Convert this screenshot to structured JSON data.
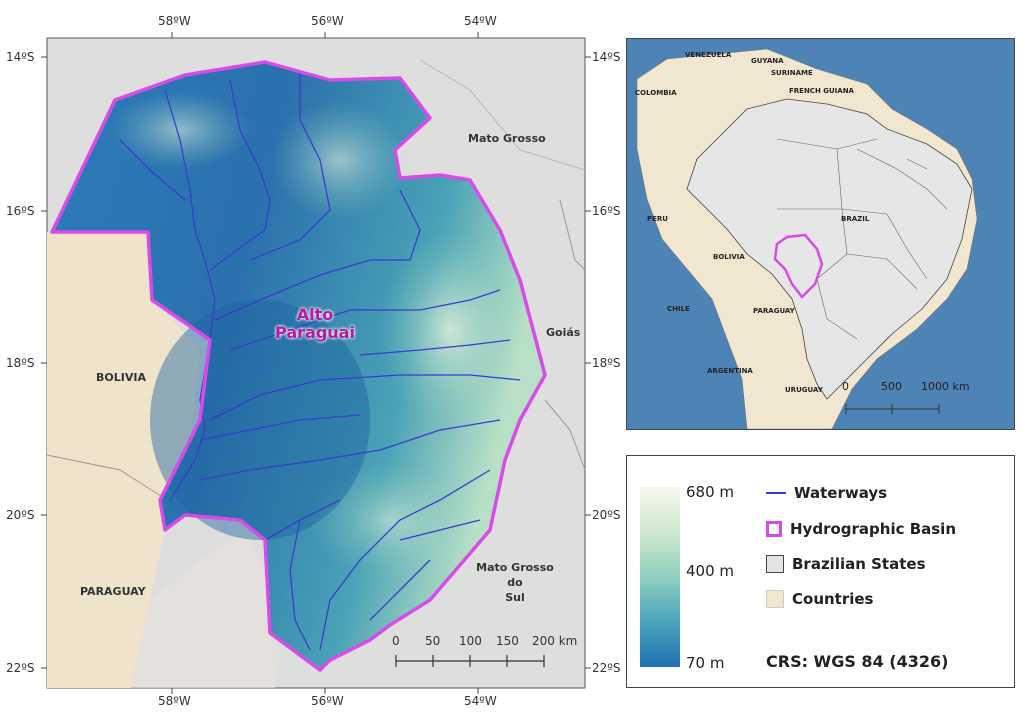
{
  "main_map": {
    "lon_ticks": [
      "58ºW",
      "56ºW",
      "54ºW"
    ],
    "lat_ticks": [
      "14ºS",
      "16ºS",
      "18ºS",
      "20ºS",
      "22ºS"
    ],
    "basin_label": "Alto\nParaguai",
    "regions": {
      "mato_grosso": "Mato Grosso",
      "goias": "Goiás",
      "bolivia": "BOLIVIA",
      "paraguay": "PARAGUAY",
      "mato_grosso_do_sul": "Mato Grosso\ndo\nSul"
    },
    "scale": {
      "labels": [
        "0",
        "50",
        "100",
        "150",
        "200 km"
      ]
    }
  },
  "inset_map": {
    "countries": [
      "VENEZUELA",
      "GUYANA",
      "SURINAME",
      "FRENCH GUIANA",
      "COLOMBIA",
      "PERU",
      "BOLIVIA",
      "BRAZIL",
      "CHILE",
      "PARAGUAY",
      "ARGENTINA",
      "URUGUAY"
    ],
    "scale": {
      "labels": [
        "0",
        "500",
        "1000 km"
      ]
    }
  },
  "legend": {
    "elevation_max": "680 m",
    "elevation_mid": "400 m",
    "elevation_min": "70 m",
    "items": {
      "waterways": "Waterways",
      "basin": "Hydrographic Basin",
      "states": "Brazilian States",
      "countries": "Countries"
    },
    "crs": "CRS: WGS 84 (4326)",
    "colors": {
      "waterways": "#3b3bd0",
      "basin_outline": "#d94be8",
      "states_fill": "#e3e3e3",
      "countries_fill": "#f3e6cf",
      "elevation_high": "#f4f8ef",
      "elevation_mid": "#7fc6bd",
      "elevation_low": "#1f6fae"
    }
  }
}
